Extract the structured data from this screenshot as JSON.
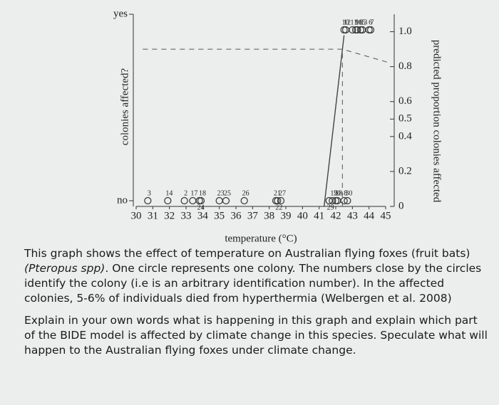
{
  "chart_data": {
    "type": "scatter",
    "xlabel": "temperature (°C)",
    "ylabel": "colonies affected?",
    "y2label": "predicted proportion colonies affected",
    "xlim": [
      30,
      45
    ],
    "xticks": [
      30,
      31,
      32,
      33,
      34,
      35,
      36,
      37,
      38,
      39,
      40,
      41,
      42,
      43,
      44,
      45
    ],
    "ylim": [
      0,
      1
    ],
    "yticks": [
      {
        "value": 0,
        "label": "no"
      },
      {
        "value": 1,
        "label": "yes"
      }
    ],
    "y2lim": [
      0,
      1.1
    ],
    "y2ticks": [
      0,
      0.2,
      0.4,
      0.5,
      0.6,
      0.8,
      {
        "value": 1,
        "label": "1.0"
      }
    ],
    "series": [
      {
        "name": "colonies",
        "kind": "points",
        "color": "#333333",
        "point_labels": [
          "3",
          "14",
          "2",
          "17",
          "24",
          "18",
          "23",
          "25",
          "26",
          "21",
          "27",
          "22",
          "20",
          "29",
          "19",
          "28",
          "8",
          "30",
          "10",
          "11",
          "16",
          "13",
          "7",
          "12",
          "9",
          "15",
          "6"
        ],
        "x": [
          30.7,
          31.9,
          32.9,
          33.4,
          33.8,
          33.9,
          35.0,
          35.4,
          36.5,
          38.4,
          38.7,
          38.5,
          42.0,
          41.6,
          41.8,
          42.1,
          42.5,
          42.7,
          42.5,
          43.0,
          43.3,
          43.6,
          44.1,
          42.6,
          43.2,
          43.5,
          44.0
        ],
        "values": [
          0,
          0,
          0,
          0,
          0,
          0,
          0,
          0,
          0,
          0,
          0,
          0,
          0,
          0,
          0,
          0,
          0,
          0,
          1,
          1,
          1,
          1,
          1,
          1,
          1,
          1,
          1
        ]
      },
      {
        "name": "prediction",
        "kind": "line",
        "axis": "y2",
        "color": "#444444",
        "x": [
          41.3,
          42.5
        ],
        "values": [
          0,
          0.98
        ]
      },
      {
        "name": "threshold",
        "kind": "dashed",
        "axis": "y2",
        "color": "#555555",
        "x": [
          30.4,
          42.4,
          45.3
        ],
        "values": [
          0.9,
          0.9,
          0.82
        ]
      },
      {
        "name": "threshold-temperature",
        "kind": "dashed",
        "axis": "y2",
        "color": "#555555",
        "x": [
          42.4,
          42.4
        ],
        "values": [
          0,
          0.9
        ]
      }
    ]
  },
  "text": {
    "paragraphs": [
      [
        "This graph shows the effect of temperature on Australian flying foxes (fruit bats) ",
        "(Pteropus spp)",
        ". One circle represents one colony. The numbers close by the circles identify the colony (i.e is an arbitrary identification number). In the affected colonies, 5-6% of individuals died from hyperthermia (Welbergen et al. 2008)"
      ],
      [
        "Explain in your own words what is happening in this graph and explain which part of the BIDE model is affected by climate change in this species. Speculate what will happen to the Australian flying foxes under climate change."
      ]
    ]
  }
}
